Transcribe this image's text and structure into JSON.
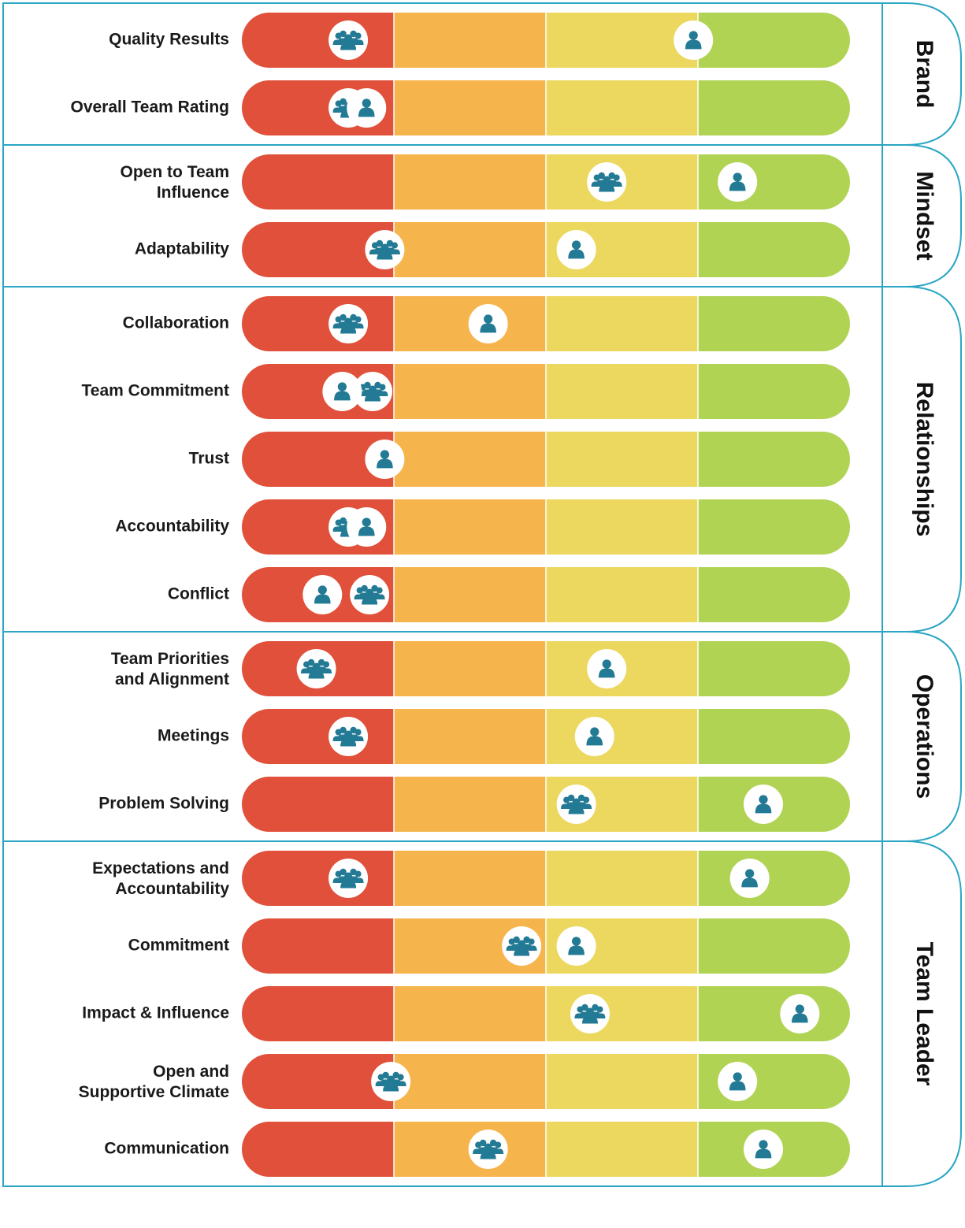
{
  "chart_data": {
    "type": "scatter",
    "description_scale": "0 = left edge of red band, 4 = right end of green band",
    "bands": [
      {
        "color": "#e0503a"
      },
      {
        "color": "#f6b44c"
      },
      {
        "color": "#ecd85e"
      },
      {
        "color": "#b1d354"
      }
    ],
    "xlim": [
      0,
      4
    ],
    "markers": {
      "individual": {
        "icon": "person-icon",
        "color": "#237a94"
      },
      "team": {
        "icon": "group-icon",
        "color": "#237a94"
      }
    },
    "colors": {
      "border": "#2aa6c4",
      "marker_bg": "#ffffff",
      "icon": "#237a94"
    },
    "sections": [
      {
        "name": "Brand",
        "rows": [
          {
            "label": "Quality Results",
            "team": 0.7,
            "individual": 2.97
          },
          {
            "label": "Overall Team Rating",
            "team": 0.7,
            "individual": 0.82
          }
        ]
      },
      {
        "name": "Mindset",
        "rows": [
          {
            "label": "Open to Team Influence",
            "team": 2.4,
            "individual": 3.26
          },
          {
            "label": "Adaptability",
            "team": 0.94,
            "individual": 2.2
          }
        ]
      },
      {
        "name": "Relationships",
        "rows": [
          {
            "label": "Collaboration",
            "team": 0.7,
            "individual": 1.62
          },
          {
            "label": "Team Commitment",
            "team": 0.86,
            "individual": 0.66
          },
          {
            "label": "Trust",
            "team": null,
            "individual": 0.94
          },
          {
            "label": "Accountability",
            "team": 0.7,
            "individual": 0.82
          },
          {
            "label": "Conflict",
            "team": 0.84,
            "individual": 0.53
          }
        ]
      },
      {
        "name": "Operations",
        "rows": [
          {
            "label": "Team Priorities and Alignment",
            "team": 0.49,
            "individual": 2.4
          },
          {
            "label": "Meetings",
            "team": 0.7,
            "individual": 2.32
          },
          {
            "label": "Problem Solving",
            "team": 2.2,
            "individual": 3.43
          }
        ]
      },
      {
        "name": "Team Leader",
        "rows": [
          {
            "label": "Expectations and Accountability",
            "team": 0.7,
            "individual": 3.34
          },
          {
            "label": "Commitment",
            "team": 1.84,
            "individual": 2.2
          },
          {
            "label": "Impact & Influence",
            "team": 2.29,
            "individual": 3.67
          },
          {
            "label": "Open and Supportive Climate",
            "team": 0.98,
            "individual": 3.26
          },
          {
            "label": "Communication",
            "team": 1.62,
            "individual": 3.43
          }
        ]
      }
    ]
  }
}
